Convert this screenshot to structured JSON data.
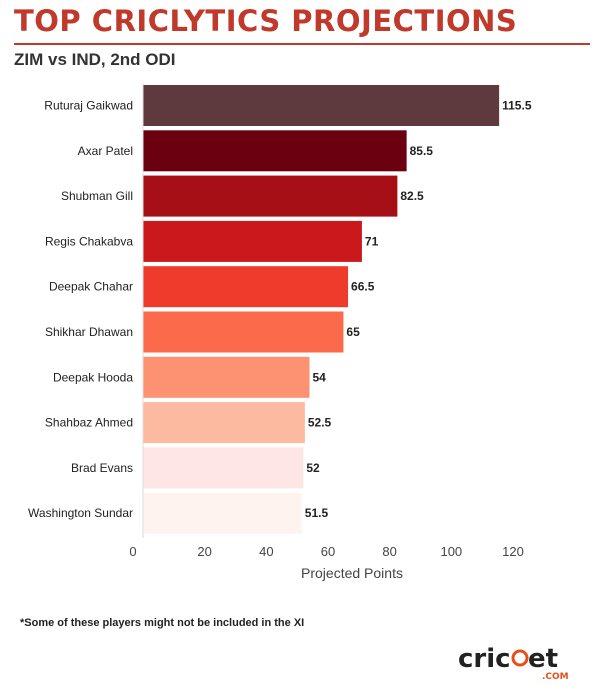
{
  "header": {
    "title": "TOP CRICLYTICS PROJECTIONS",
    "subtitle": "ZIM vs IND, 2nd ODI"
  },
  "chart_data": {
    "type": "bar",
    "orientation": "horizontal",
    "title": "TOP CRICLYTICS PROJECTIONS",
    "subtitle": "ZIM vs IND, 2nd ODI",
    "xlabel": "Projected Points",
    "ylabel": "",
    "xlim": [
      0,
      130
    ],
    "xticks": [
      0,
      20,
      40,
      60,
      80,
      100,
      120
    ],
    "grid": false,
    "categories": [
      "Ruturaj Gaikwad",
      "Axar Patel",
      "Shubman Gill",
      "Regis Chakabva",
      "Deepak Chahar",
      "Shikhar Dhawan",
      "Deepak Hooda",
      "Shahbaz Ahmed",
      "Brad Evans",
      "Washington Sundar"
    ],
    "values": [
      115.5,
      85.5,
      82.5,
      71,
      66.5,
      65,
      54,
      52.5,
      52,
      51.5
    ],
    "value_labels": [
      "115.5",
      "85.5",
      "82.5",
      "71",
      "66.5",
      "65",
      "54",
      "52.5",
      "52",
      "51.5"
    ],
    "colors": [
      "#5e393e",
      "#6a0010",
      "#a50f15",
      "#cb181d",
      "#ef3b2c",
      "#fb6a4a",
      "#fc9272",
      "#fcbba1",
      "#fde6e4",
      "#fff3ef"
    ]
  },
  "footnote": "*Some of these players might not be included in the XI",
  "logo": {
    "text_left": "cric",
    "text_right": "et",
    "suffix": ".COM",
    "colors": {
      "main": "#222222",
      "accent": "#e84e1b"
    }
  }
}
